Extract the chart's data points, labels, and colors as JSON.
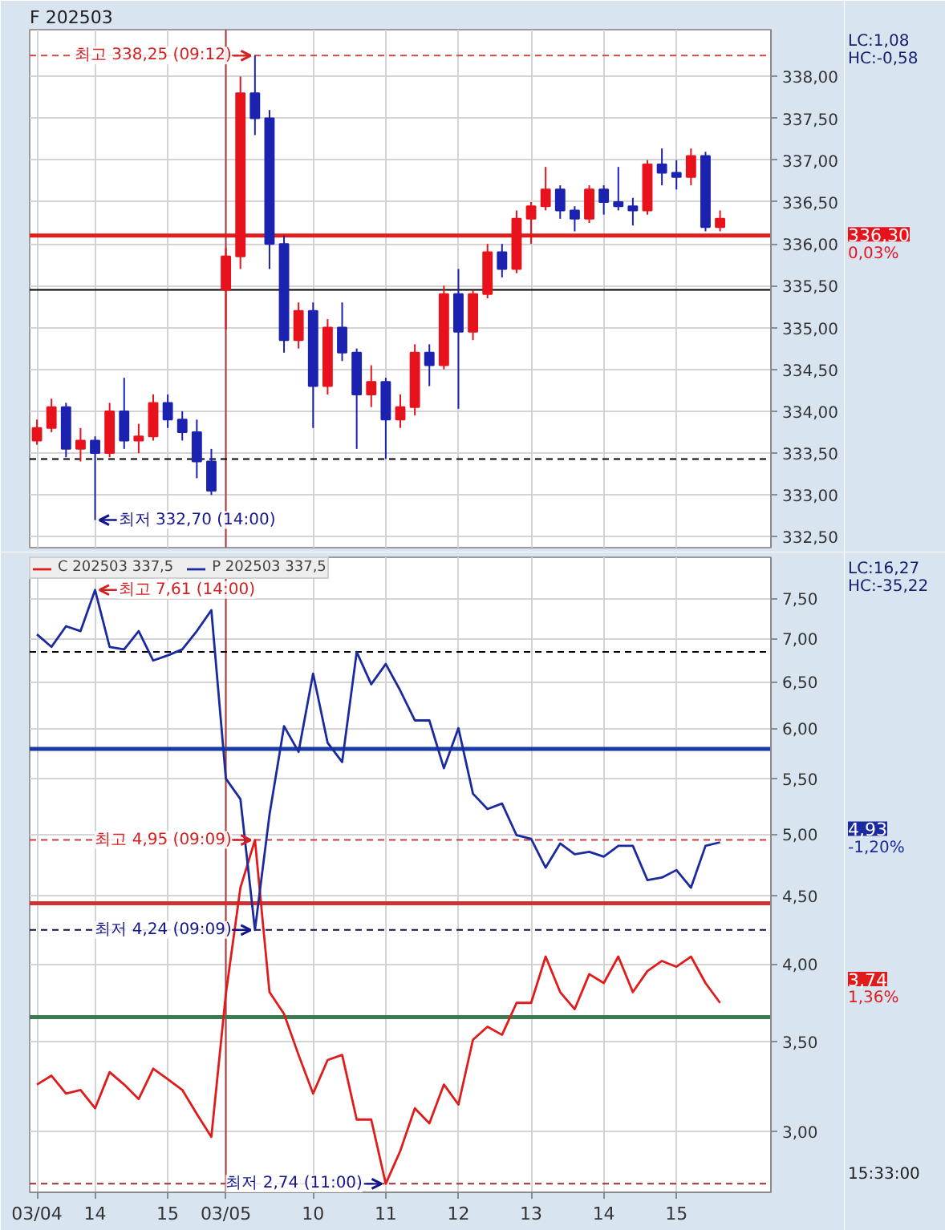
{
  "chart_data": [
    {
      "type": "candlestick",
      "title": "F 202503",
      "categories": [
        "03/04",
        null,
        null,
        null,
        "14",
        null,
        null,
        null,
        null,
        "15",
        null,
        null,
        null,
        "03/05",
        null,
        null,
        null,
        null,
        null,
        "10",
        null,
        null,
        null,
        null,
        "11",
        null,
        null,
        null,
        null,
        "12",
        null,
        null,
        null,
        null,
        "13",
        null,
        null,
        null,
        null,
        "14",
        null,
        null,
        null,
        null,
        "15",
        null,
        null,
        null,
        null,
        null,
        null
      ],
      "ohlc": [
        [
          333.65,
          333.9,
          333.6,
          333.8
        ],
        [
          333.8,
          334.15,
          333.75,
          334.05
        ],
        [
          334.05,
          334.1,
          333.45,
          333.55
        ],
        [
          333.55,
          333.8,
          333.4,
          333.65
        ],
        [
          333.65,
          333.7,
          332.7,
          333.5
        ],
        [
          333.5,
          334.1,
          333.45,
          334.0
        ],
        [
          334.0,
          334.4,
          333.55,
          333.65
        ],
        [
          333.65,
          333.85,
          333.5,
          333.7
        ],
        [
          333.7,
          334.2,
          333.65,
          334.1
        ],
        [
          334.1,
          334.2,
          333.8,
          333.9
        ],
        [
          333.9,
          334.0,
          333.65,
          333.75
        ],
        [
          333.75,
          333.9,
          333.2,
          333.4
        ],
        [
          333.4,
          333.55,
          333.0,
          333.05
        ],
        [
          335.45,
          335.95,
          334.98,
          335.85
        ],
        [
          335.85,
          338.0,
          335.7,
          337.8
        ],
        [
          337.8,
          338.25,
          337.3,
          337.5
        ],
        [
          337.5,
          337.6,
          335.7,
          336.0
        ],
        [
          336.0,
          336.1,
          334.7,
          334.85
        ],
        [
          334.85,
          335.3,
          334.75,
          335.2
        ],
        [
          335.2,
          335.3,
          333.8,
          334.3
        ],
        [
          334.3,
          335.1,
          334.2,
          335.0
        ],
        [
          335.0,
          335.3,
          334.6,
          334.7
        ],
        [
          334.7,
          334.75,
          333.55,
          334.2
        ],
        [
          334.2,
          334.55,
          334.05,
          334.35
        ],
        [
          334.35,
          334.4,
          333.43,
          333.9
        ],
        [
          333.9,
          334.2,
          333.8,
          334.05
        ],
        [
          334.05,
          334.8,
          333.95,
          334.7
        ],
        [
          334.7,
          334.8,
          334.3,
          334.55
        ],
        [
          334.55,
          335.5,
          334.5,
          335.4
        ],
        [
          335.4,
          335.7,
          334.03,
          334.95
        ],
        [
          334.95,
          335.45,
          334.85,
          335.4
        ],
        [
          335.4,
          336.0,
          335.35,
          335.9
        ],
        [
          335.9,
          336.0,
          335.6,
          335.7
        ],
        [
          335.7,
          336.4,
          335.65,
          336.3
        ],
        [
          336.3,
          336.5,
          336.0,
          336.45
        ],
        [
          336.45,
          336.92,
          336.4,
          336.65
        ],
        [
          336.65,
          336.7,
          336.3,
          336.4
        ],
        [
          336.4,
          336.45,
          336.15,
          336.3
        ],
        [
          336.3,
          336.7,
          336.25,
          336.65
        ],
        [
          336.65,
          336.7,
          336.35,
          336.5
        ],
        [
          336.5,
          336.92,
          336.4,
          336.45
        ],
        [
          336.45,
          336.55,
          336.22,
          336.4
        ],
        [
          336.4,
          337.0,
          336.35,
          336.95
        ],
        [
          336.95,
          337.14,
          336.7,
          336.85
        ],
        [
          336.85,
          337.0,
          336.65,
          336.8
        ],
        [
          336.8,
          337.14,
          336.7,
          337.05
        ],
        [
          337.05,
          337.1,
          336.15,
          336.2
        ],
        [
          336.2,
          336.4,
          336.15,
          336.3
        ],
        null,
        null,
        null
      ],
      "colors": [
        "#e8121c",
        "#e8121c",
        "#1c22b0",
        "#e8121c",
        "#1c22b0",
        "#e8121c",
        "#1c22b0",
        "#e8121c",
        "#e8121c",
        "#1c22b0",
        "#1c22b0",
        "#1c22b0",
        "#1c22b0",
        "#e8121c",
        "#e8121c",
        "#1c22b0",
        "#1c22b0",
        "#1c22b0",
        "#e8121c",
        "#1c22b0",
        "#e8121c",
        "#1c22b0",
        "#1c22b0",
        "#e8121c",
        "#1c22b0",
        "#e8121c",
        "#e8121c",
        "#1c22b0",
        "#e8121c",
        "#1c22b0",
        "#e8121c",
        "#e8121c",
        "#1c22b0",
        "#e8121c",
        "#e8121c",
        "#e8121c",
        "#1c22b0",
        "#1c22b0",
        "#e8121c",
        "#1c22b0",
        "#1c22b0",
        "#1c22b0",
        "#e8121c",
        "#1c22b0",
        "#1c22b0",
        "#e8121c",
        "#1c22b0",
        "#e8121c",
        null,
        null,
        null
      ],
      "ylim": [
        332.37,
        338.56
      ],
      "yticks": [
        {
          "value": 332.5,
          "label": "332,50"
        },
        {
          "value": 333,
          "label": "333,00"
        },
        {
          "value": 333.5,
          "label": "333,50"
        },
        {
          "value": 334,
          "label": "334,00"
        },
        {
          "value": 334.5,
          "label": "334,50"
        },
        {
          "value": 335,
          "label": "335,00"
        },
        {
          "value": 335.5,
          "label": "335,50"
        },
        {
          "value": 336,
          "label": "336,00"
        },
        {
          "value": 336.5,
          "label": "336,50"
        },
        {
          "value": 337,
          "label": "337,00"
        },
        {
          "value": 337.5,
          "label": "337,50"
        },
        {
          "value": 338,
          "label": "338,00"
        }
      ],
      "tick_labels": "y",
      "grid": true,
      "ref_lines": [
        {
          "axis": "x",
          "value": "03/05",
          "color": "#b03a3a"
        },
        {
          "axis": "y",
          "value": 338.25,
          "color": "#d04848",
          "line_style": "dashed"
        },
        {
          "axis": "y",
          "value": 336.1,
          "color": "#e01e1e"
        },
        {
          "axis": "y",
          "value": 335.45,
          "color": "#000000"
        },
        {
          "axis": "y",
          "value": 333.43,
          "color": "#000000",
          "line_style": "dashed"
        }
      ],
      "annotations": [
        {
          "text": "최고 338,25 (09:12)",
          "y": 338.25
        },
        {
          "text": "최저 332,70 (14:00)",
          "x": "14",
          "y": 332.7
        },
        "LC:1,08",
        "HC:-0,58",
        "336,30",
        "0,03%"
      ]
    },
    {
      "type": "line",
      "categories": [
        "03/04",
        null,
        null,
        null,
        "14",
        null,
        null,
        null,
        null,
        "15",
        null,
        null,
        null,
        "03/05",
        null,
        null,
        null,
        null,
        null,
        "10",
        null,
        null,
        null,
        null,
        "11",
        null,
        null,
        null,
        null,
        "12",
        null,
        null,
        null,
        null,
        "13",
        null,
        null,
        null,
        null,
        "14",
        null,
        null,
        null,
        null,
        "15",
        null,
        null,
        null,
        null,
        null,
        null
      ],
      "series": [
        {
          "name": "C 202503 337,5",
          "color": "#e01b1b",
          "values": [
            3.25,
            3.3,
            3.2,
            3.22,
            3.12,
            3.32,
            3.25,
            3.17,
            3.34,
            3.28,
            3.22,
            3.09,
            2.97,
            3.8,
            4.56,
            4.95,
            3.81,
            3.67,
            3.42,
            3.2,
            3.39,
            3.42,
            3.06,
            3.06,
            2.74,
            2.9,
            3.12,
            3.04,
            3.25,
            3.14,
            3.51,
            3.59,
            3.54,
            3.74,
            3.74,
            4.05,
            3.81,
            3.7,
            3.93,
            3.87,
            4.05,
            3.81,
            3.95,
            4.02,
            3.98,
            4.05,
            3.87,
            3.74,
            null,
            null,
            null
          ]
        },
        {
          "name": "P 202503 337,5",
          "color": "#1b2a9e",
          "values": [
            7.05,
            6.9,
            7.15,
            7.09,
            7.61,
            6.9,
            6.87,
            7.09,
            6.74,
            6.8,
            6.87,
            7.09,
            7.35,
            5.5,
            5.31,
            4.24,
            5.17,
            6.02,
            5.76,
            6.59,
            5.85,
            5.66,
            6.84,
            6.47,
            6.7,
            6.4,
            6.08,
            6.08,
            5.6,
            6.0,
            5.36,
            5.22,
            5.27,
            4.99,
            4.96,
            4.72,
            4.92,
            4.83,
            4.85,
            4.81,
            4.9,
            4.9,
            4.62,
            4.64,
            4.7,
            4.56,
            4.9,
            4.93,
            null,
            null,
            null
          ]
        }
      ],
      "log": true,
      "ylim": [
        2.7,
        8.05
      ],
      "yticks": [
        {
          "value": 3,
          "label": "3,00"
        },
        {
          "value": 3.5,
          "label": "3,50"
        },
        {
          "value": 4,
          "label": "4,00"
        },
        {
          "value": 4.5,
          "label": "4,50"
        },
        {
          "value": 5,
          "label": "5,00"
        },
        {
          "value": 5.5,
          "label": "5,50"
        },
        {
          "value": 6,
          "label": "6,00"
        },
        {
          "value": 6.5,
          "label": "6,50"
        },
        {
          "value": 7,
          "label": "7,00"
        },
        {
          "value": 7.5,
          "label": "7,50"
        }
      ],
      "grid": true,
      "legend": "top left",
      "ref_lines": [
        {
          "axis": "x",
          "value": "03/05",
          "color": "#b03a3a"
        },
        {
          "axis": "y",
          "value": 6.84,
          "color": "#000000",
          "line_style": "dashed"
        },
        {
          "axis": "y",
          "value": 5.79,
          "color": "#1a3aa8"
        },
        {
          "axis": "y",
          "value": 4.95,
          "color": "#c83c3c",
          "line_style": "dashed"
        },
        {
          "axis": "y",
          "value": 4.44,
          "color": "#cc3333"
        },
        {
          "axis": "y",
          "value": 4.24,
          "color": "#101040",
          "line_style": "dashed"
        },
        {
          "axis": "y",
          "value": 3.65,
          "color": "#3c7a50"
        },
        {
          "axis": "y",
          "value": 2.74,
          "color": "#a03030",
          "line_style": "dashed"
        }
      ],
      "annotations": [
        {
          "text": "최고 7,61 (14:00)",
          "x": "14",
          "y": 7.61
        },
        {
          "text": "최고 4,95 (09:09)",
          "y": 4.95
        },
        {
          "text": "최저 4,24 (09:09)",
          "y": 4.24
        },
        {
          "text": "최저 2,74 (11:00)",
          "x": "11",
          "y": 2.74
        },
        "LC:16,27",
        "HC:-35,22",
        "4,93",
        "-1,20%",
        "3,74",
        "1,36%",
        "15:33:00"
      ]
    }
  ]
}
